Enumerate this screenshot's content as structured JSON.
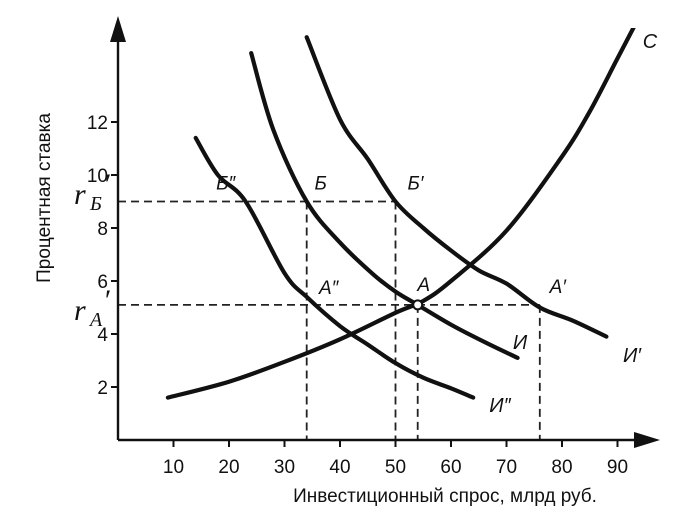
{
  "chart_data": {
    "type": "line",
    "title": "",
    "xlabel": "Инвестиционный спрос, млрд руб.",
    "ylabel": "Процентная ставка",
    "xlim": [
      0,
      95
    ],
    "ylim": [
      0,
      14.5
    ],
    "x_ticks": [
      10,
      20,
      30,
      40,
      50,
      60,
      70,
      80,
      90
    ],
    "y_ticks": [
      2,
      4,
      6,
      8,
      10,
      12
    ],
    "grid": false,
    "series": [
      {
        "name": "С",
        "x": [
          9,
          20,
          30,
          40,
          50,
          55,
          60,
          70,
          80,
          85,
          90,
          93
        ],
        "y": [
          1.6,
          2.2,
          2.95,
          3.8,
          4.8,
          5.25,
          6.0,
          7.9,
          10.7,
          12.4,
          14.4,
          15.6
        ]
      },
      {
        "name": "И",
        "x": [
          24,
          28,
          34,
          40,
          46,
          50,
          54,
          60,
          66,
          72
        ],
        "y": [
          14.6,
          11.7,
          9.0,
          7.45,
          6.25,
          5.6,
          5.1,
          4.35,
          3.7,
          3.1
        ]
      },
      {
        "name": "И′",
        "x": [
          34,
          40,
          45,
          50,
          55,
          60,
          65,
          70,
          76,
          82,
          88
        ],
        "y": [
          15.2,
          12.1,
          10.6,
          9.0,
          8.0,
          7.15,
          6.4,
          5.9,
          5.0,
          4.5,
          3.9
        ]
      },
      {
        "name": "И″",
        "x": [
          14,
          18,
          23,
          30,
          34,
          40,
          45,
          50,
          55,
          60,
          64
        ],
        "y": [
          11.4,
          10.0,
          9.0,
          6.3,
          5.4,
          4.3,
          3.6,
          2.9,
          2.35,
          1.95,
          1.6
        ]
      }
    ],
    "rates": {
      "r_b": {
        "label": "r",
        "sub": "Б",
        "value": 9.0
      },
      "r_a": {
        "label": "r",
        "sub": "А",
        "value": 5.1
      }
    },
    "guides": [
      {
        "from": [
          0,
          9.0
        ],
        "to": [
          50,
          9.0
        ]
      },
      {
        "from": [
          0,
          5.1
        ],
        "to": [
          76,
          5.1
        ]
      },
      {
        "from": [
          34,
          9.0
        ],
        "to": [
          34,
          0
        ]
      },
      {
        "from": [
          50,
          9.0
        ],
        "to": [
          50,
          0
        ]
      },
      {
        "from": [
          54,
          5.1
        ],
        "to": [
          54,
          0
        ]
      },
      {
        "from": [
          76,
          5.1
        ],
        "to": [
          76,
          0
        ]
      }
    ],
    "points": [
      {
        "label": "Б″",
        "x": 23,
        "y": 9.0
      },
      {
        "label": "Б",
        "x": 34,
        "y": 9.0
      },
      {
        "label": "Б′",
        "x": 50,
        "y": 9.0
      },
      {
        "label": "А″",
        "x": 34,
        "y": 5.1
      },
      {
        "label": "А",
        "x": 54,
        "y": 5.1
      },
      {
        "label": "А′",
        "x": 76,
        "y": 5.1
      }
    ]
  }
}
